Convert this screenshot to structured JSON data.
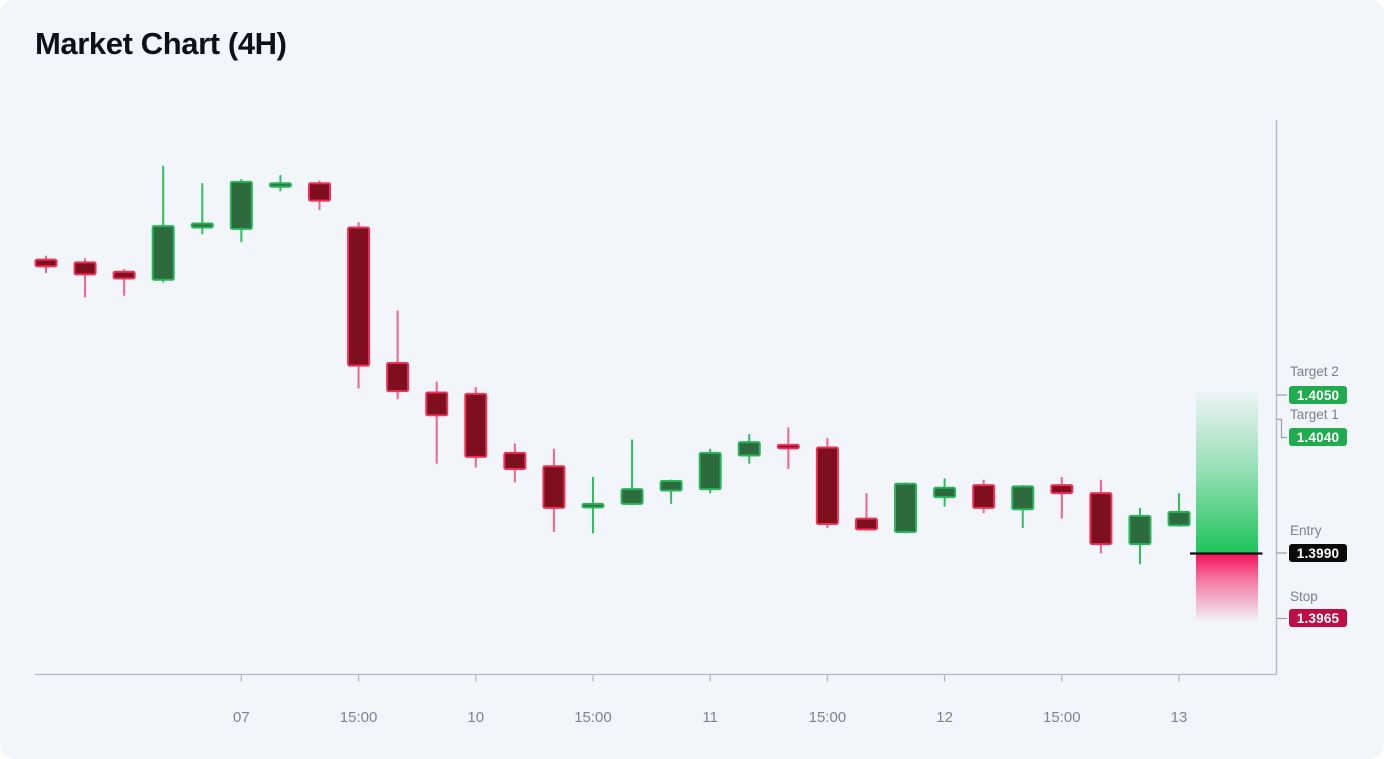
{
  "page": {
    "title": "Market Chart (4H)"
  },
  "annotations": {
    "target2": {
      "label": "Target 2",
      "value": "1.4050",
      "color": "#1FAB4E"
    },
    "target1": {
      "label": "Target 1",
      "value": "1.4040",
      "color": "#1FAB4E"
    },
    "entry": {
      "label": "Entry",
      "value": "1.3990",
      "color": "#0A0A0A"
    },
    "stop": {
      "label": "Stop",
      "value": "1.3965",
      "color": "#BE0D45"
    }
  },
  "chart_data": {
    "type": "candlestick",
    "title": "Market Chart (4H)",
    "timeframe": "4H",
    "grid": "off",
    "legend": "none",
    "ylim": [
      1.394,
      1.4145
    ],
    "levels": {
      "entry": 1.399,
      "stop": 1.3965,
      "target1": 1.404,
      "target2": 1.405
    },
    "x_tick_labels": [
      {
        "index": 5,
        "label": "07"
      },
      {
        "index": 8,
        "label": "15:00"
      },
      {
        "index": 11,
        "label": "10"
      },
      {
        "index": 14,
        "label": "15:00"
      },
      {
        "index": 17,
        "label": "11"
      },
      {
        "index": 20,
        "label": "15:00"
      },
      {
        "index": 23,
        "label": "12"
      },
      {
        "index": 26,
        "label": "15:00"
      },
      {
        "index": 29,
        "label": "13"
      }
    ],
    "candles": [
      {
        "o": 1.40995,
        "h": 1.4101,
        "l": 1.40945,
        "c": 1.4097
      },
      {
        "o": 1.40985,
        "h": 1.41,
        "l": 1.40855,
        "c": 1.4094
      },
      {
        "o": 1.4095,
        "h": 1.4096,
        "l": 1.4086,
        "c": 1.40925
      },
      {
        "o": 1.4092,
        "h": 1.41345,
        "l": 1.4091,
        "c": 1.4112
      },
      {
        "o": 1.41115,
        "h": 1.4128,
        "l": 1.4109,
        "c": 1.4113
      },
      {
        "o": 1.4111,
        "h": 1.41295,
        "l": 1.4106,
        "c": 1.41285
      },
      {
        "o": 1.4127,
        "h": 1.4131,
        "l": 1.4125,
        "c": 1.4128
      },
      {
        "o": 1.4128,
        "h": 1.4129,
        "l": 1.4118,
        "c": 1.41215
      },
      {
        "o": 1.41115,
        "h": 1.41135,
        "l": 1.40515,
        "c": 1.406
      },
      {
        "o": 1.4061,
        "h": 1.40805,
        "l": 1.40475,
        "c": 1.40505
      },
      {
        "o": 1.405,
        "h": 1.4054,
        "l": 1.40235,
        "c": 1.40415
      },
      {
        "o": 1.40495,
        "h": 1.4052,
        "l": 1.4022,
        "c": 1.4026
      },
      {
        "o": 1.40275,
        "h": 1.4031,
        "l": 1.40165,
        "c": 1.40215
      },
      {
        "o": 1.40225,
        "h": 1.4029,
        "l": 1.3998,
        "c": 1.4007
      },
      {
        "o": 1.40075,
        "h": 1.40185,
        "l": 1.39975,
        "c": 1.40085
      },
      {
        "o": 1.40085,
        "h": 1.40325,
        "l": 1.4008,
        "c": 1.4014
      },
      {
        "o": 1.40135,
        "h": 1.40175,
        "l": 1.40085,
        "c": 1.4017
      },
      {
        "o": 1.4014,
        "h": 1.4029,
        "l": 1.40125,
        "c": 1.40275
      },
      {
        "o": 1.40265,
        "h": 1.40345,
        "l": 1.40235,
        "c": 1.40315
      },
      {
        "o": 1.40305,
        "h": 1.4037,
        "l": 1.40215,
        "c": 1.403
      },
      {
        "o": 1.40295,
        "h": 1.4033,
        "l": 1.39995,
        "c": 1.4001
      },
      {
        "o": 1.4003,
        "h": 1.40125,
        "l": 1.39985,
        "c": 1.3999
      },
      {
        "o": 1.3998,
        "h": 1.40165,
        "l": 1.39975,
        "c": 1.4016
      },
      {
        "o": 1.4011,
        "h": 1.4018,
        "l": 1.40075,
        "c": 1.40145
      },
      {
        "o": 1.40155,
        "h": 1.40175,
        "l": 1.4005,
        "c": 1.4007
      },
      {
        "o": 1.40065,
        "h": 1.40155,
        "l": 1.39995,
        "c": 1.4015
      },
      {
        "o": 1.40155,
        "h": 1.40185,
        "l": 1.4003,
        "c": 1.40125
      },
      {
        "o": 1.40125,
        "h": 1.40175,
        "l": 1.399,
        "c": 1.39935
      },
      {
        "o": 1.39935,
        "h": 1.4007,
        "l": 1.3986,
        "c": 1.4004
      },
      {
        "o": 1.40005,
        "h": 1.40125,
        "l": 1.4,
        "c": 1.40055
      }
    ],
    "colors": {
      "bull_fill": "#2D6A3E",
      "bull_stroke": "#27B558",
      "bull_wick": "#2EBD5F",
      "bear_fill": "#7D0F1F",
      "bear_stroke": "#EF3059",
      "bear_wick": "#F2638B",
      "zone_green": "#1EC45B",
      "zone_pink": "#F5125C",
      "entry_line": "#111111",
      "axis": "#B4B8C5",
      "tick_text": "#7D8294"
    }
  }
}
